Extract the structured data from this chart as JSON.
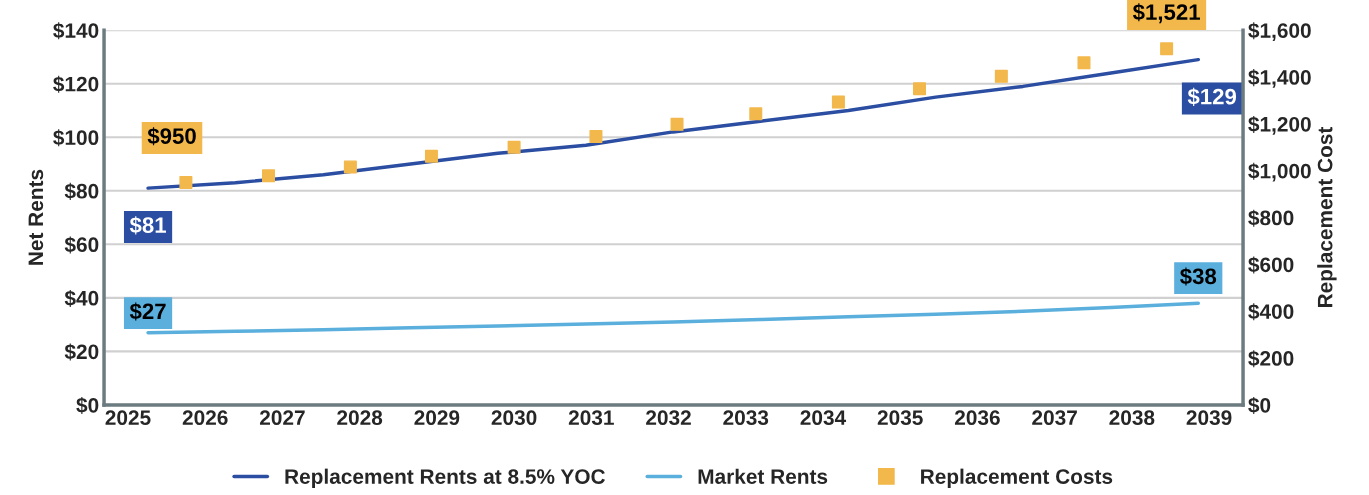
{
  "chart_data": {
    "type": "line",
    "ylabel": "Net Rents",
    "y2label": "Replacement Cost",
    "xlim": [
      2024.69,
      2039.44
    ],
    "xticks": [
      2025,
      2026,
      2027,
      2028,
      2029,
      2030,
      2031,
      2032,
      2033,
      2034,
      2035,
      2036,
      2037,
      2038,
      2039
    ],
    "ylim": [
      0,
      140
    ],
    "yticks": [
      {
        "value": 0,
        "label": "$0"
      },
      {
        "value": 20,
        "label": "$20"
      },
      {
        "value": 40,
        "label": "$40"
      },
      {
        "value": 60,
        "label": "$60"
      },
      {
        "value": 80,
        "label": "$80"
      },
      {
        "value": 100,
        "label": "$100"
      },
      {
        "value": 120,
        "label": "$120"
      },
      {
        "value": 140,
        "label": "$140"
      }
    ],
    "y2lim": [
      0,
      1600
    ],
    "y2ticks": [
      {
        "value": 0,
        "label": "$0"
      },
      {
        "value": 200,
        "label": "$200"
      },
      {
        "value": 400,
        "label": "$400"
      },
      {
        "value": 600,
        "label": "$600"
      },
      {
        "value": 800,
        "label": "$800"
      },
      {
        "value": 1000,
        "label": "$1,000"
      },
      {
        "value": 1200,
        "label": "$1,200"
      },
      {
        "value": 1400,
        "label": "$1,400"
      },
      {
        "value": 1600,
        "label": "$1,600"
      }
    ],
    "grid": "y",
    "legend": "bottom",
    "series": [
      {
        "name": "Replacement Rents at 8.5% YOC",
        "color": "#2b4ea2",
        "line_style": "solid",
        "x": [
          2025.26,
          2026.39,
          2027.53,
          2028.66,
          2029.79,
          2030.93,
          2032.06,
          2033.19,
          2034.33,
          2035.46,
          2036.59,
          2037.73,
          2038.86
        ],
        "values": [
          81,
          83,
          86,
          90,
          94,
          97,
          102,
          106,
          110,
          115,
          119,
          124,
          129
        ],
        "value_labels": [
          "$81",
          null,
          null,
          null,
          null,
          null,
          null,
          null,
          null,
          null,
          null,
          null,
          "$129"
        ]
      },
      {
        "name": "Market Rents",
        "color": "#5aafdc",
        "line_style": "solid",
        "x": [
          2025.26,
          2026.39,
          2027.53,
          2028.66,
          2029.79,
          2030.93,
          2032.06,
          2033.19,
          2034.33,
          2035.46,
          2036.59,
          2037.73,
          2038.86
        ],
        "values": [
          27,
          27.5,
          28.1,
          28.8,
          29.5,
          30.2,
          31,
          31.9,
          32.9,
          33.9,
          35,
          36.4,
          38
        ],
        "value_labels": [
          "$27",
          null,
          null,
          null,
          null,
          null,
          null,
          null,
          null,
          null,
          null,
          null,
          "$38"
        ]
      },
      {
        "name": "Replacement Costs",
        "type": "scatter",
        "axis": "y2",
        "marker": "square",
        "color": "#f2b84b",
        "x": [
          2025.75,
          2026.82,
          2027.88,
          2028.93,
          2030.0,
          2031.06,
          2032.11,
          2033.13,
          2034.2,
          2035.25,
          2036.31,
          2037.38,
          2038.45
        ],
        "values": [
          950,
          978,
          1016,
          1062,
          1100,
          1146,
          1198,
          1243,
          1293,
          1350,
          1403,
          1461,
          1521
        ],
        "value_labels": [
          "$950",
          null,
          null,
          null,
          null,
          null,
          null,
          null,
          null,
          null,
          null,
          null,
          "$1,521"
        ]
      }
    ]
  }
}
